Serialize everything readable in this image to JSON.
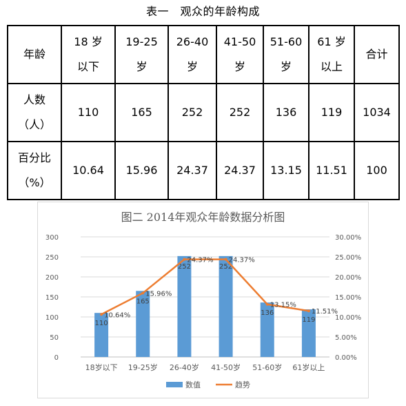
{
  "table": {
    "title": "表一　观众的年龄构成",
    "header": [
      "年龄",
      "18 岁以下",
      "19-25 岁",
      "26-40 岁",
      "41-50 岁",
      "51-60 岁",
      "61 岁以上",
      "合计"
    ],
    "rows": [
      {
        "label": "人数（人）",
        "values": [
          "110",
          "165",
          "252",
          "252",
          "136",
          "119",
          "1034"
        ]
      },
      {
        "label": "百分比（%）",
        "values": [
          "10.64",
          "15.96",
          "24.37",
          "24.37",
          "13.15",
          "11.51",
          "100"
        ]
      }
    ]
  },
  "chart_data": {
    "type": "bar",
    "title": "图二 2014年观众年龄数据分析图",
    "categories": [
      "18岁以下",
      "19-25岁",
      "26-40岁",
      "41-50岁",
      "51-60岁",
      "61岁以上"
    ],
    "series": [
      {
        "name": "数值",
        "type": "bar",
        "axis": "left",
        "color": "#5b9bd5",
        "values": [
          110,
          165,
          252,
          252,
          136,
          119
        ],
        "labels": [
          "110",
          "165",
          "252",
          "252",
          "136",
          "119"
        ]
      },
      {
        "name": "趋势",
        "type": "line",
        "axis": "right",
        "color": "#ed7d31",
        "values": [
          10.64,
          15.96,
          24.37,
          24.37,
          13.15,
          11.51
        ],
        "labels": [
          "10.64%",
          "15.96%",
          "24.37%",
          "24.37%",
          "13.15%",
          "11.51%"
        ]
      }
    ],
    "ylim": [
      0,
      300
    ],
    "yticks": [
      "0",
      "50",
      "100",
      "150",
      "200",
      "250",
      "300"
    ],
    "y2lim": [
      0,
      30
    ],
    "y2ticks": [
      "0.00%",
      "5.00%",
      "10.00%",
      "15.00%",
      "20.00%",
      "25.00%",
      "30.00%"
    ],
    "grid": true,
    "legend": "bottom"
  }
}
